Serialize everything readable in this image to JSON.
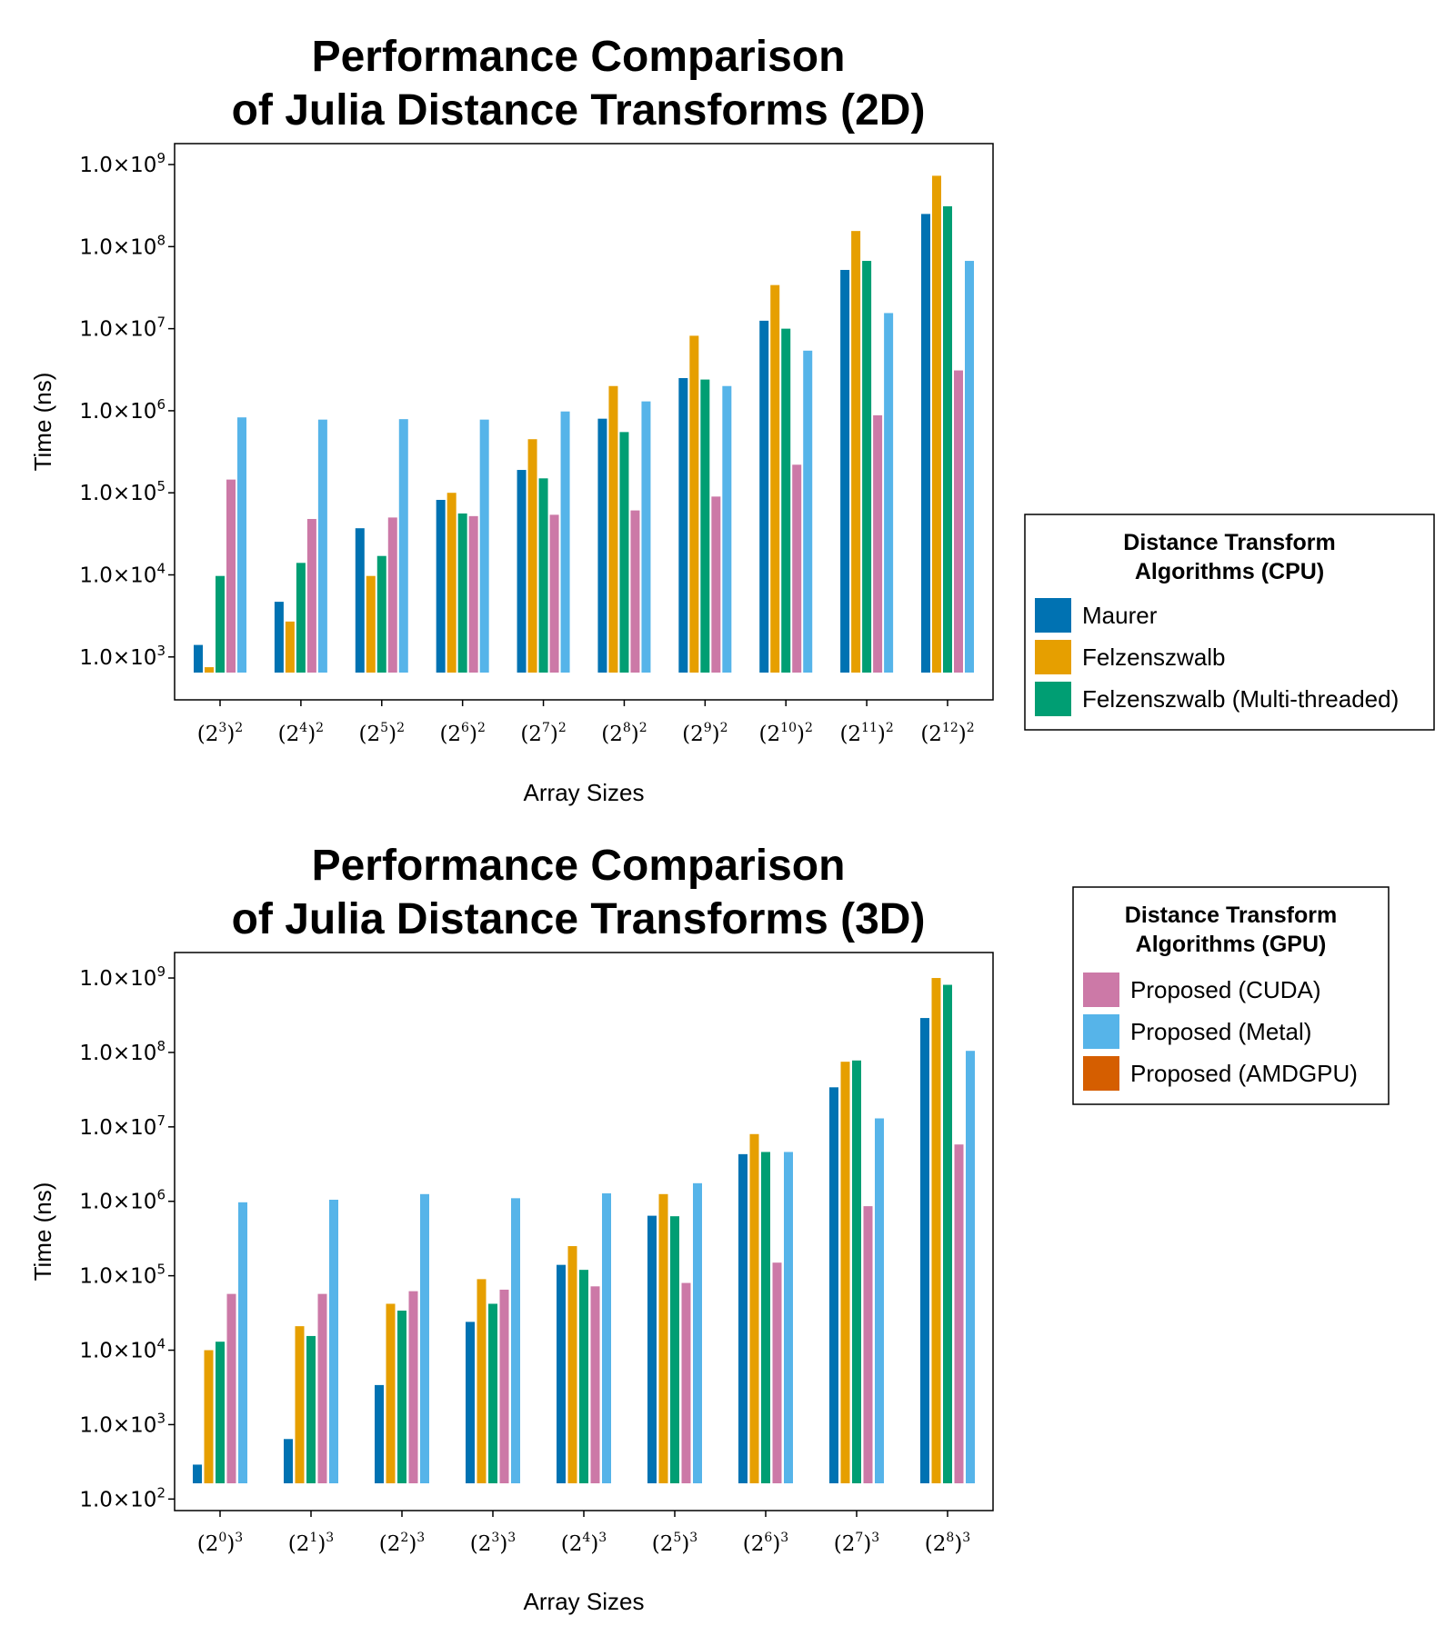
{
  "chart_data": [
    {
      "type": "bar",
      "title": [
        "Performance Comparison",
        "of Julia Distance Transforms (2D)"
      ],
      "xlabel": "Array Sizes",
      "ylabel": "Time (ns)",
      "yscale": "log",
      "ylim": [
        300,
        1800000000
      ],
      "yticks": [
        {
          "mantissa": "1.0×10",
          "exp": "3",
          "value": 1000
        },
        {
          "mantissa": "1.0×10",
          "exp": "4",
          "value": 10000
        },
        {
          "mantissa": "1.0×10",
          "exp": "5",
          "value": 100000
        },
        {
          "mantissa": "1.0×10",
          "exp": "6",
          "value": 1000000
        },
        {
          "mantissa": "1.0×10",
          "exp": "7",
          "value": 10000000
        },
        {
          "mantissa": "1.0×10",
          "exp": "8",
          "value": 100000000
        },
        {
          "mantissa": "1.0×10",
          "exp": "9",
          "value": 1000000000
        }
      ],
      "categories": [
        {
          "base": "(2",
          "exp": "3",
          "outer": ")",
          "power": "2"
        },
        {
          "base": "(2",
          "exp": "4",
          "outer": ")",
          "power": "2"
        },
        {
          "base": "(2",
          "exp": "5",
          "outer": ")",
          "power": "2"
        },
        {
          "base": "(2",
          "exp": "6",
          "outer": ")",
          "power": "2"
        },
        {
          "base": "(2",
          "exp": "7",
          "outer": ")",
          "power": "2"
        },
        {
          "base": "(2",
          "exp": "8",
          "outer": ")",
          "power": "2"
        },
        {
          "base": "(2",
          "exp": "9",
          "outer": ")",
          "power": "2"
        },
        {
          "base": "(2",
          "exp": "10",
          "outer": ")",
          "power": "2"
        },
        {
          "base": "(2",
          "exp": "11",
          "outer": ")",
          "power": "2"
        },
        {
          "base": "(2",
          "exp": "12",
          "outer": ")",
          "power": "2"
        }
      ],
      "series": [
        {
          "name": "Maurer",
          "color": "#0072B2",
          "values": [
            1400,
            4700,
            37000,
            82000,
            190000,
            800000,
            2500000,
            12500000,
            52000000,
            250000000
          ]
        },
        {
          "name": "Felzenszwalb",
          "color": "#E69F00",
          "values": [
            750,
            2700,
            9700,
            100000,
            450000,
            2000000,
            8200000,
            34000000,
            155000000,
            730000000
          ]
        },
        {
          "name": "Felzenszwalb (Multi-threaded)",
          "color": "#009E73",
          "values": [
            9700,
            14000,
            17000,
            56000,
            150000,
            550000,
            2400000,
            10000000,
            67000000,
            310000000
          ]
        },
        {
          "name": "Proposed (CUDA)",
          "color": "#CC79A7",
          "values": [
            145000,
            48000,
            50000,
            52000,
            54000,
            61000,
            90000,
            220000,
            880000,
            3100000
          ]
        },
        {
          "name": "Proposed (Metal)",
          "color": "#56B4E9",
          "values": [
            830000,
            780000,
            790000,
            780000,
            980000,
            1300000,
            2000000,
            5400000,
            15500000,
            67000000
          ]
        }
      ],
      "legend": {
        "position": "right",
        "title": [
          "Distance Transform",
          "Algorithms (CPU)"
        ],
        "items": [
          {
            "label": "Maurer",
            "color": "#0072B2"
          },
          {
            "label": "Felzenszwalb",
            "color": "#E69F00"
          },
          {
            "label": "Felzenszwalb (Multi-threaded)",
            "color": "#009E73"
          }
        ]
      }
    },
    {
      "type": "bar",
      "title": [
        "Performance Comparison",
        "of Julia Distance Transforms (3D)"
      ],
      "xlabel": "Array Sizes",
      "ylabel": "Time (ns)",
      "yscale": "log",
      "ylim": [
        70,
        2200000000
      ],
      "yticks": [
        {
          "mantissa": "1.0×10",
          "exp": "2",
          "value": 100
        },
        {
          "mantissa": "1.0×10",
          "exp": "3",
          "value": 1000
        },
        {
          "mantissa": "1.0×10",
          "exp": "4",
          "value": 10000
        },
        {
          "mantissa": "1.0×10",
          "exp": "5",
          "value": 100000
        },
        {
          "mantissa": "1.0×10",
          "exp": "6",
          "value": 1000000
        },
        {
          "mantissa": "1.0×10",
          "exp": "7",
          "value": 10000000
        },
        {
          "mantissa": "1.0×10",
          "exp": "8",
          "value": 100000000
        },
        {
          "mantissa": "1.0×10",
          "exp": "9",
          "value": 1000000000
        }
      ],
      "categories": [
        {
          "base": "(2",
          "exp": "0",
          "outer": ")",
          "power": "3"
        },
        {
          "base": "(2",
          "exp": "1",
          "outer": ")",
          "power": "3"
        },
        {
          "base": "(2",
          "exp": "2",
          "outer": ")",
          "power": "3"
        },
        {
          "base": "(2",
          "exp": "3",
          "outer": ")",
          "power": "3"
        },
        {
          "base": "(2",
          "exp": "4",
          "outer": ")",
          "power": "3"
        },
        {
          "base": "(2",
          "exp": "5",
          "outer": ")",
          "power": "3"
        },
        {
          "base": "(2",
          "exp": "6",
          "outer": ")",
          "power": "3"
        },
        {
          "base": "(2",
          "exp": "7",
          "outer": ")",
          "power": "3"
        },
        {
          "base": "(2",
          "exp": "8",
          "outer": ")",
          "power": "3"
        }
      ],
      "series": [
        {
          "name": "Maurer",
          "color": "#0072B2",
          "values": [
            290,
            640,
            3400,
            24000,
            140000,
            640000,
            4300000,
            34000000,
            290000000
          ]
        },
        {
          "name": "Felzenszwalb",
          "color": "#E69F00",
          "values": [
            10000,
            21000,
            42000,
            90000,
            250000,
            1250000,
            8000000,
            75000000,
            1000000000
          ]
        },
        {
          "name": "Felzenszwalb (Multi-threaded)",
          "color": "#009E73",
          "values": [
            13000,
            15500,
            34000,
            42000,
            120000,
            630000,
            4600000,
            78000000,
            810000000
          ]
        },
        {
          "name": "Proposed (CUDA)",
          "color": "#CC79A7",
          "values": [
            57000,
            57000,
            62000,
            65000,
            72000,
            80000,
            150000,
            860000,
            5800000
          ]
        },
        {
          "name": "Proposed (Metal)",
          "color": "#56B4E9",
          "values": [
            970000,
            1050000,
            1250000,
            1100000,
            1280000,
            1750000,
            4600000,
            13000000,
            105000000
          ]
        }
      ],
      "legend": {
        "position": "right",
        "title": [
          "Distance Transform",
          "Algorithms (GPU)"
        ],
        "items": [
          {
            "label": "Proposed (CUDA)",
            "color": "#CC79A7"
          },
          {
            "label": "Proposed (Metal)",
            "color": "#56B4E9"
          },
          {
            "label": "Proposed (AMDGPU)",
            "color": "#D55E00"
          }
        ]
      }
    }
  ]
}
